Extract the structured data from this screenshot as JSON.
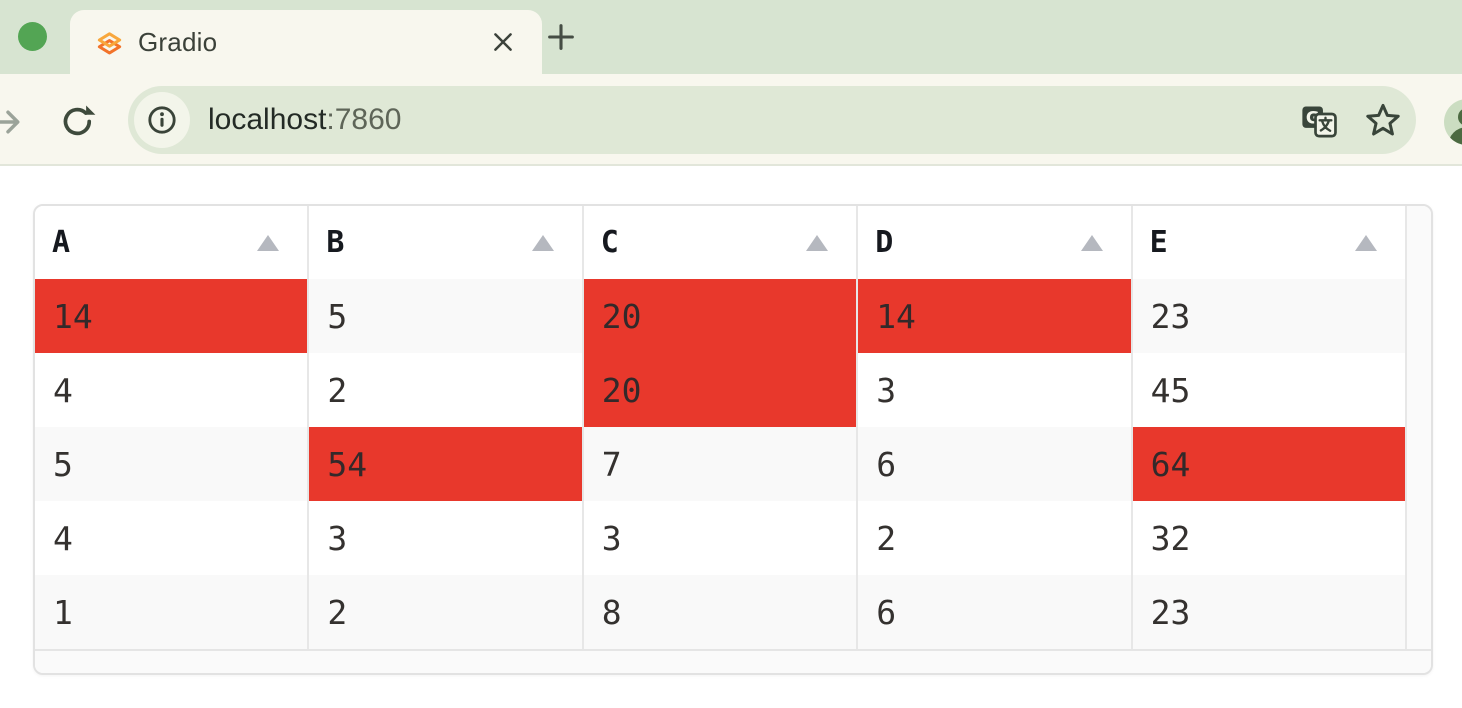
{
  "browser": {
    "tab_title": "Gradio",
    "close_label": "×",
    "url_host": "localhost",
    "url_port": ":7860",
    "icons": {
      "favicon": "gradio-logo-icon",
      "new_tab": "plus-icon",
      "forward": "forward-arrow-icon",
      "reload": "reload-icon",
      "site_info": "info-icon",
      "translate": "translate-icon",
      "bookmark": "star-icon",
      "profile": "avatar"
    }
  },
  "table": {
    "columns": [
      {
        "label": "A",
        "sort_icon": "sort-ascending-icon"
      },
      {
        "label": "B",
        "sort_icon": "sort-ascending-icon"
      },
      {
        "label": "C",
        "sort_icon": "sort-ascending-icon"
      },
      {
        "label": "D",
        "sort_icon": "sort-ascending-icon"
      },
      {
        "label": "E",
        "sort_icon": "sort-ascending-icon"
      }
    ],
    "rows": [
      [
        "14",
        "5",
        "20",
        "14",
        "23"
      ],
      [
        "4",
        "2",
        "20",
        "3",
        "45"
      ],
      [
        "5",
        "54",
        "7",
        "6",
        "64"
      ],
      [
        "4",
        "3",
        "3",
        "2",
        "32"
      ],
      [
        "1",
        "2",
        "8",
        "6",
        "23"
      ]
    ],
    "highlighted_cells": [
      [
        0,
        0
      ],
      [
        0,
        2
      ],
      [
        0,
        3
      ],
      [
        1,
        2
      ],
      [
        2,
        1
      ],
      [
        2,
        4
      ]
    ]
  },
  "colors": {
    "highlight": "#e8382c",
    "row_stripe": "#f9f9f9",
    "tabstrip_bg": "#d7e4d1",
    "toolbar_bg": "#f8f7ee",
    "omnibox_bg": "#dfe8d6",
    "traffic_light_green": "#53a554"
  }
}
